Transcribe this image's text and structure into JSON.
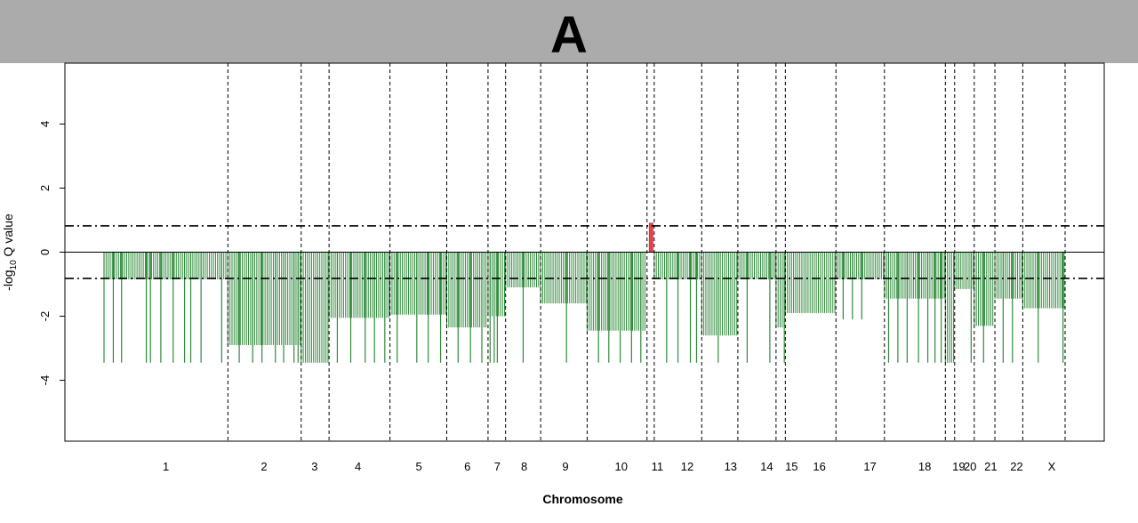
{
  "panel": {
    "label": "A"
  },
  "chart_data": {
    "type": "bar",
    "xlabel": "Chromosome",
    "ylabel_base": "-log",
    "ylabel_sub": "10",
    "ylabel_rest": " Q value",
    "ylim": [
      -5.9,
      5.9
    ],
    "yticks": [
      -4,
      -2,
      0,
      2,
      4
    ],
    "threshold": 0.82,
    "colors": {
      "gain": "#e0303a",
      "loss": "#2e8b3a",
      "axis": "#000000",
      "threshold": "#000000",
      "boundary": "#000000"
    },
    "grid": false,
    "chromosomes": [
      {
        "name": "1",
        "start": 0.0,
        "end": 12.0,
        "label_x": 6.0
      },
      {
        "name": "2",
        "start": 12.0,
        "end": 19.1,
        "label_x": 15.5
      },
      {
        "name": "3",
        "start": 19.1,
        "end": 21.8,
        "label_x": 20.4
      },
      {
        "name": "4",
        "start": 21.8,
        "end": 27.7,
        "label_x": 24.6
      },
      {
        "name": "5",
        "start": 27.7,
        "end": 33.2,
        "label_x": 30.5
      },
      {
        "name": "6",
        "start": 33.2,
        "end": 37.2,
        "label_x": 35.2
      },
      {
        "name": "7",
        "start": 37.2,
        "end": 38.9,
        "label_x": 38.1
      },
      {
        "name": "8",
        "start": 38.9,
        "end": 42.3,
        "label_x": 40.7
      },
      {
        "name": "9",
        "start": 42.3,
        "end": 46.8,
        "label_x": 44.7
      },
      {
        "name": "10",
        "start": 46.8,
        "end": 52.6,
        "label_x": 50.1
      },
      {
        "name": "11",
        "start": 52.6,
        "end": 53.3,
        "label_x": 53.6
      },
      {
        "name": "12",
        "start": 53.3,
        "end": 57.9,
        "label_x": 56.5
      },
      {
        "name": "13",
        "start": 57.9,
        "end": 61.4,
        "label_x": 60.7
      },
      {
        "name": "14",
        "start": 61.4,
        "end": 65.1,
        "label_x": 64.2
      },
      {
        "name": "15",
        "start": 65.1,
        "end": 66.0,
        "label_x": 66.6
      },
      {
        "name": "16",
        "start": 66.0,
        "end": 70.9,
        "label_x": 69.3
      },
      {
        "name": "17",
        "start": 70.9,
        "end": 75.6,
        "label_x": 74.2
      },
      {
        "name": "18",
        "start": 75.6,
        "end": 81.5,
        "label_x": 79.5
      },
      {
        "name": "19",
        "start": 81.5,
        "end": 82.4,
        "label_x": 82.8
      },
      {
        "name": "20",
        "start": 82.4,
        "end": 84.3,
        "label_x": 83.9
      },
      {
        "name": "21",
        "start": 84.3,
        "end": 86.3,
        "label_x": 85.9
      },
      {
        "name": "22",
        "start": 86.3,
        "end": 89.0,
        "label_x": 88.4
      },
      {
        "name": "X",
        "start": 89.0,
        "end": 93.1,
        "label_x": 91.8
      }
    ],
    "gain_bars": [
      {
        "x": 52.85,
        "y": 0.92
      },
      {
        "x": 53.0,
        "y": 0.92
      },
      {
        "x": 53.15,
        "y": 0.92
      }
    ],
    "loss_segments": [
      {
        "start": 0.0,
        "end": 12.0,
        "level": -0.85,
        "deep": -3.45,
        "spikes": [
          0.0,
          0.9,
          1.7,
          4.1,
          4.5,
          5.5,
          6.7,
          7.8,
          8.4,
          9.4,
          11.4
        ]
      },
      {
        "start": 12.0,
        "end": 19.1,
        "level": -2.9,
        "deep": -3.45,
        "spikes": [
          13.1,
          14.4,
          15.3,
          16.6,
          17.4,
          18.4,
          18.8
        ]
      },
      {
        "start": 19.1,
        "end": 21.8,
        "level": -3.45,
        "deep": -3.45,
        "spikes": []
      },
      {
        "start": 21.8,
        "end": 27.7,
        "level": -2.05,
        "deep": -3.45,
        "spikes": [
          22.6,
          23.9,
          25.3,
          26.2,
          27.2
        ]
      },
      {
        "start": 27.7,
        "end": 33.2,
        "level": -1.95,
        "deep": -3.45,
        "spikes": [
          28.4,
          30.3,
          31.4,
          32.6
        ]
      },
      {
        "start": 33.2,
        "end": 37.2,
        "level": -2.35,
        "deep": -3.45,
        "spikes": [
          34.3,
          35.5,
          36.6
        ]
      },
      {
        "start": 37.2,
        "end": 38.9,
        "level": -2.0,
        "deep": -3.45,
        "spikes": [
          37.4,
          37.8,
          38.1
        ]
      },
      {
        "start": 38.9,
        "end": 42.3,
        "level": -1.1,
        "deep": -3.45,
        "spikes": [
          40.6
        ]
      },
      {
        "start": 42.3,
        "end": 46.8,
        "level": -1.6,
        "deep": -3.45,
        "spikes": [
          44.8
        ]
      },
      {
        "start": 46.8,
        "end": 52.6,
        "level": -2.45,
        "deep": -3.45,
        "spikes": [
          47.9,
          48.9,
          50.0,
          51.1,
          52.0
        ]
      },
      {
        "start": 53.3,
        "end": 57.9,
        "level": -0.85,
        "deep": -3.45,
        "spikes": [
          54.5,
          55.6,
          56.8,
          57.4
        ]
      },
      {
        "start": 57.9,
        "end": 61.4,
        "level": -2.6,
        "deep": -3.45,
        "spikes": [
          59.5
        ]
      },
      {
        "start": 61.4,
        "end": 65.1,
        "level": -0.85,
        "deep": -3.45,
        "spikes": [
          62.3,
          64.5
        ]
      },
      {
        "start": 65.1,
        "end": 66.0,
        "level": -2.35,
        "deep": -3.45,
        "spikes": [
          65.9
        ]
      },
      {
        "start": 66.0,
        "end": 70.9,
        "level": -1.9,
        "deep": -1.9,
        "spikes": []
      },
      {
        "start": 70.9,
        "end": 75.6,
        "level": -0.85,
        "deep": -2.1,
        "spikes": [
          71.6,
          72.5,
          73.4
        ]
      },
      {
        "start": 75.6,
        "end": 81.5,
        "level": -1.45,
        "deep": -3.45,
        "spikes": [
          76.0,
          76.9,
          77.8,
          78.9,
          79.8,
          80.5,
          81.1
        ]
      },
      {
        "start": 81.5,
        "end": 82.4,
        "level": -3.45,
        "deep": -3.45,
        "spikes": []
      },
      {
        "start": 82.4,
        "end": 84.3,
        "level": -1.15,
        "deep": -3.45,
        "spikes": [
          84.0
        ]
      },
      {
        "start": 84.3,
        "end": 86.3,
        "level": -2.3,
        "deep": -3.45,
        "spikes": [
          85.2
        ]
      },
      {
        "start": 86.3,
        "end": 89.0,
        "level": -1.45,
        "deep": -3.45,
        "spikes": [
          87.1,
          88.0
        ]
      },
      {
        "start": 89.0,
        "end": 93.1,
        "level": -1.75,
        "deep": -3.45,
        "spikes": [
          90.5,
          92.9
        ]
      }
    ]
  }
}
